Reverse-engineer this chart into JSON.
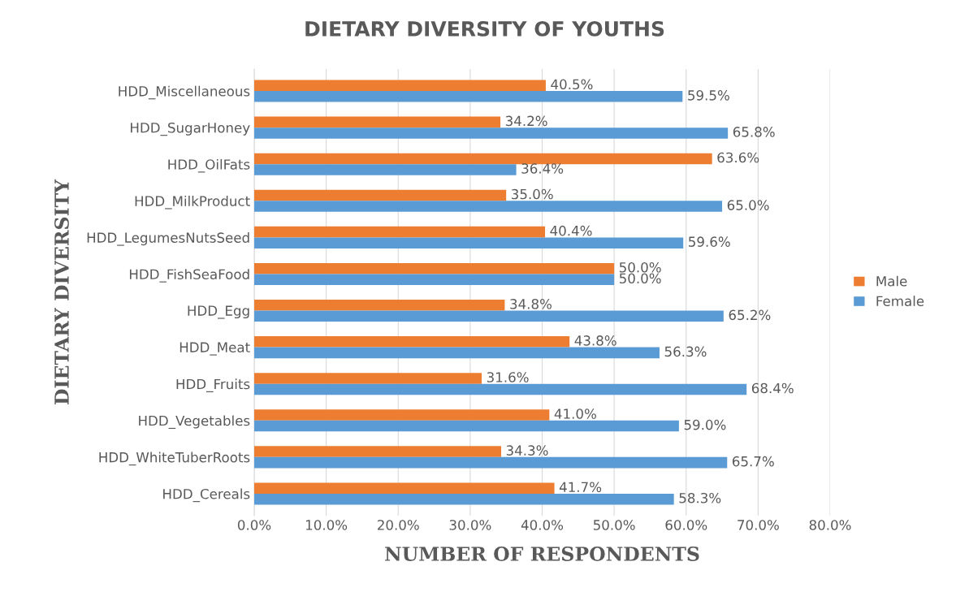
{
  "chart_data": {
    "type": "bar",
    "orientation": "horizontal",
    "title": "DIETARY DIVERSITY OF YOUTHS",
    "xlabel": "NUMBER OF RESPONDENTS",
    "ylabel": "DIETARY DIVERSITY",
    "categories": [
      "HDD_Miscellaneous",
      "HDD_SugarHoney",
      "HDD_OilFats",
      "HDD_MilkProduct",
      "HDD_LegumesNutsSeed",
      "HDD_FishSeaFood",
      "HDD_Egg",
      "HDD_Meat",
      "HDD_Fruits",
      "HDD_Vegetables",
      "HDD_WhiteTuberRoots",
      "HDD_Cereals"
    ],
    "series": [
      {
        "name": "Male",
        "color": "#ed7d31",
        "values": [
          40.5,
          34.2,
          63.6,
          35.0,
          40.4,
          50.0,
          34.8,
          43.8,
          31.6,
          41.0,
          34.3,
          41.7
        ],
        "value_labels": [
          "40.5%",
          "34.2%",
          "63.6%",
          "35.0%",
          "40.4%",
          "50.0%",
          "34.8%",
          "43.8%",
          "31.6%",
          "41.0%",
          "34.3%",
          "41.7%"
        ]
      },
      {
        "name": "Female",
        "color": "#5b9bd5",
        "values": [
          59.5,
          65.8,
          36.4,
          65.0,
          59.6,
          50.0,
          65.2,
          56.3,
          68.4,
          59.0,
          65.7,
          58.3
        ],
        "value_labels": [
          "59.5%",
          "65.8%",
          "36.4%",
          "65.0%",
          "59.6%",
          "50.0%",
          "65.2%",
          "56.3%",
          "68.4%",
          "59.0%",
          "65.7%",
          "58.3%"
        ]
      }
    ],
    "xlim": [
      0,
      80
    ],
    "xticks": [
      {
        "value": 0,
        "label": "0.0%"
      },
      {
        "value": 10,
        "label": "10.0%"
      },
      {
        "value": 20,
        "label": "20.0%"
      },
      {
        "value": 30,
        "label": "30.0%"
      },
      {
        "value": 40,
        "label": "40.0%"
      },
      {
        "value": 50,
        "label": "50.0%"
      },
      {
        "value": 60,
        "label": "60.0%"
      },
      {
        "value": 70,
        "label": "70.0%"
      },
      {
        "value": 80,
        "label": "80.0%"
      }
    ],
    "grid": "x",
    "legend": "right"
  }
}
